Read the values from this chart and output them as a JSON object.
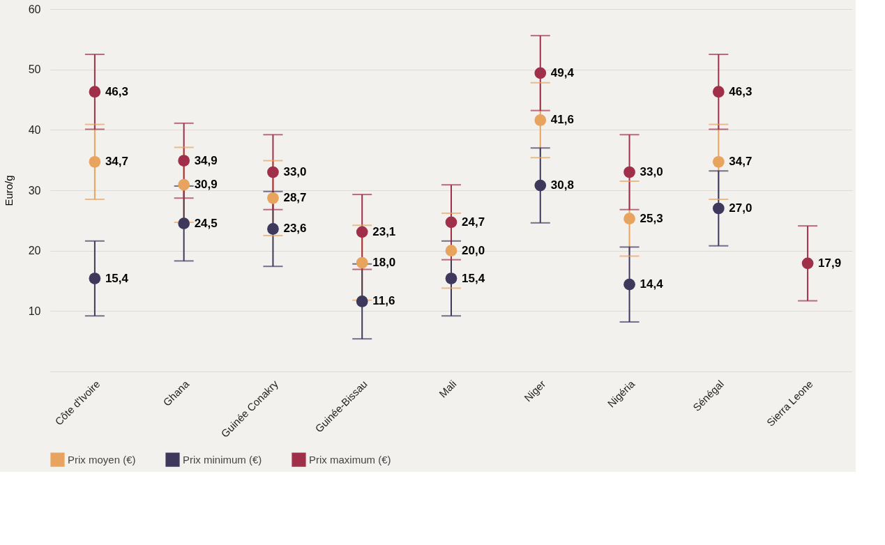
{
  "chart_data": {
    "type": "scatter",
    "ylabel": "Euro/g",
    "categories": [
      "Côte d'Ivoire",
      "Ghana",
      "Guinée Conakry",
      "Guinée-Bissau",
      "Mali",
      "Niger",
      "Nigéria",
      "Sénégal",
      "Sierra Leone"
    ],
    "series": [
      {
        "name": "Prix moyen (€)",
        "color": "#e8a35f",
        "values": [
          34.7,
          30.9,
          28.7,
          18.0,
          20.0,
          41.6,
          25.3,
          34.7,
          null
        ],
        "errors": [
          6.2,
          6.2,
          6.2,
          6.2,
          6.2,
          6.2,
          6.2,
          6.2,
          null
        ],
        "value_labels": [
          "34,7",
          "30,9",
          "28,7",
          "18,0",
          "20,0",
          "41,6",
          "25,3",
          "34,7",
          null
        ]
      },
      {
        "name": "Prix minimum (€)",
        "color": "#3d385c",
        "values": [
          15.4,
          24.5,
          23.6,
          11.6,
          15.4,
          30.8,
          14.4,
          27.0,
          null
        ],
        "errors": [
          6.2,
          6.2,
          6.2,
          6.2,
          6.2,
          6.2,
          6.2,
          6.2,
          null
        ],
        "value_labels": [
          "15,4",
          "24,5",
          "23,6",
          "11,6",
          "15,4",
          "30,8",
          "14,4",
          "27,0",
          null
        ]
      },
      {
        "name": "Prix maximum (€)",
        "color": "#a0304a",
        "values": [
          46.3,
          34.9,
          33.0,
          23.1,
          24.7,
          49.4,
          33.0,
          46.3,
          17.9
        ],
        "errors": [
          6.2,
          6.2,
          6.2,
          6.2,
          6.2,
          6.2,
          6.2,
          6.2,
          6.2
        ],
        "value_labels": [
          "46,3",
          "34,9",
          "33,0",
          "23,1",
          "24,7",
          "49,4",
          "33,0",
          "46,3",
          "17,9"
        ]
      }
    ],
    "ylim": [
      0,
      60
    ],
    "yticks": [
      {
        "value": 0,
        "label": null
      },
      10,
      20,
      30,
      40,
      50,
      60
    ],
    "grid": "y",
    "legend": "bottom",
    "marker": "circle"
  }
}
